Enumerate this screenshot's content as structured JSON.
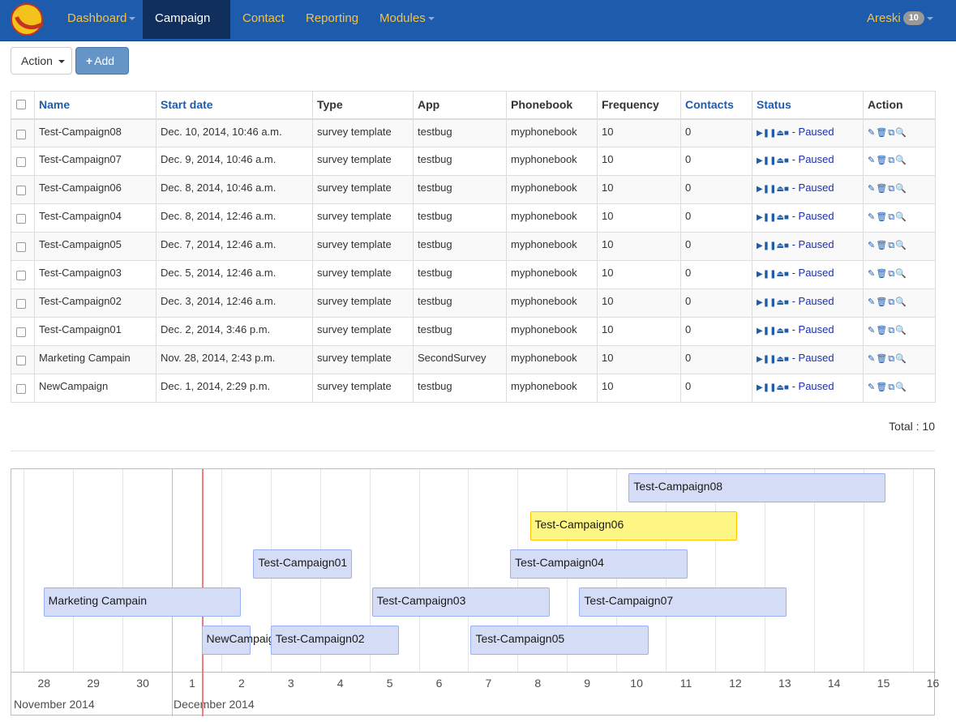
{
  "navbar": {
    "items": [
      {
        "label": "Dashboard"
      },
      {
        "label": "Campaign"
      },
      {
        "label": "Contact"
      },
      {
        "label": "Reporting"
      },
      {
        "label": "Modules"
      }
    ],
    "user": {
      "name": "Areski",
      "badge": "10"
    }
  },
  "toolbar": {
    "action_label": "Action",
    "add_label": "Add"
  },
  "table": {
    "columns": [
      "Name",
      "Start date",
      "Type",
      "App",
      "Phonebook",
      "Frequency",
      "Contacts",
      "Status",
      "Action"
    ],
    "status_label": "- Paused",
    "rows": [
      {
        "name": "Test-Campaign08",
        "start": "Dec. 10, 2014, 10:46 a.m.",
        "type": "survey template",
        "app": "testbug",
        "phonebook": "myphonebook",
        "frequency": "10",
        "contacts": "0"
      },
      {
        "name": "Test-Campaign07",
        "start": "Dec. 9, 2014, 10:46 a.m.",
        "type": "survey template",
        "app": "testbug",
        "phonebook": "myphonebook",
        "frequency": "10",
        "contacts": "0"
      },
      {
        "name": "Test-Campaign06",
        "start": "Dec. 8, 2014, 10:46 a.m.",
        "type": "survey template",
        "app": "testbug",
        "phonebook": "myphonebook",
        "frequency": "10",
        "contacts": "0"
      },
      {
        "name": "Test-Campaign04",
        "start": "Dec. 8, 2014, 12:46 a.m.",
        "type": "survey template",
        "app": "testbug",
        "phonebook": "myphonebook",
        "frequency": "10",
        "contacts": "0"
      },
      {
        "name": "Test-Campaign05",
        "start": "Dec. 7, 2014, 12:46 a.m.",
        "type": "survey template",
        "app": "testbug",
        "phonebook": "myphonebook",
        "frequency": "10",
        "contacts": "0"
      },
      {
        "name": "Test-Campaign03",
        "start": "Dec. 5, 2014, 12:46 a.m.",
        "type": "survey template",
        "app": "testbug",
        "phonebook": "myphonebook",
        "frequency": "10",
        "contacts": "0"
      },
      {
        "name": "Test-Campaign02",
        "start": "Dec. 3, 2014, 12:46 a.m.",
        "type": "survey template",
        "app": "testbug",
        "phonebook": "myphonebook",
        "frequency": "10",
        "contacts": "0"
      },
      {
        "name": "Test-Campaign01",
        "start": "Dec. 2, 2014, 3:46 p.m.",
        "type": "survey template",
        "app": "testbug",
        "phonebook": "myphonebook",
        "frequency": "10",
        "contacts": "0"
      },
      {
        "name": "Marketing Campain",
        "start": "Nov. 28, 2014, 2:43 p.m.",
        "type": "survey template",
        "app": "SecondSurvey",
        "phonebook": "myphonebook",
        "frequency": "10",
        "contacts": "0"
      },
      {
        "name": "NewCampaign",
        "start": "Dec. 1, 2014, 2:29 p.m.",
        "type": "survey template",
        "app": "testbug",
        "phonebook": "myphonebook",
        "frequency": "10",
        "contacts": "0"
      }
    ],
    "total": "Total : 10"
  },
  "timeline": {
    "day_ticks": [
      "28",
      "29",
      "30",
      "1",
      "2",
      "3",
      "4",
      "5",
      "6",
      "7",
      "8",
      "9",
      "10",
      "11",
      "12",
      "13",
      "14",
      "15",
      "16"
    ],
    "month_labels": [
      "November 2014",
      "December 2014"
    ],
    "items": [
      {
        "label": "Test-Campaign08",
        "start_day": 9.25,
        "end_day": 14.45,
        "selected": false
      },
      {
        "label": "Test-Campaign06",
        "start_day": 7.25,
        "end_day": 11.45,
        "selected": true
      },
      {
        "label": "Test-Campaign01",
        "start_day": 1.65,
        "end_day": 3.65,
        "selected": false
      },
      {
        "label": "Test-Campaign04",
        "start_day": 6.85,
        "end_day": 10.45,
        "selected": false
      },
      {
        "label": "Marketing Campain",
        "start_day": -2.6,
        "end_day": 1.4,
        "selected": false
      },
      {
        "label": "Test-Campaign03",
        "start_day": 4.05,
        "end_day": 7.65,
        "selected": false
      },
      {
        "label": "Test-Campaign07",
        "start_day": 8.25,
        "end_day": 12.45,
        "selected": false
      },
      {
        "label": "NewCampaign",
        "start_day": 0.6,
        "end_day": 1.6,
        "selected": false
      },
      {
        "label": "Test-Campaign02",
        "start_day": 2.0,
        "end_day": 4.6,
        "selected": false
      },
      {
        "label": "Test-Campaign05",
        "start_day": 6.05,
        "end_day": 9.65,
        "selected": false
      }
    ],
    "current_day": 0.6
  }
}
